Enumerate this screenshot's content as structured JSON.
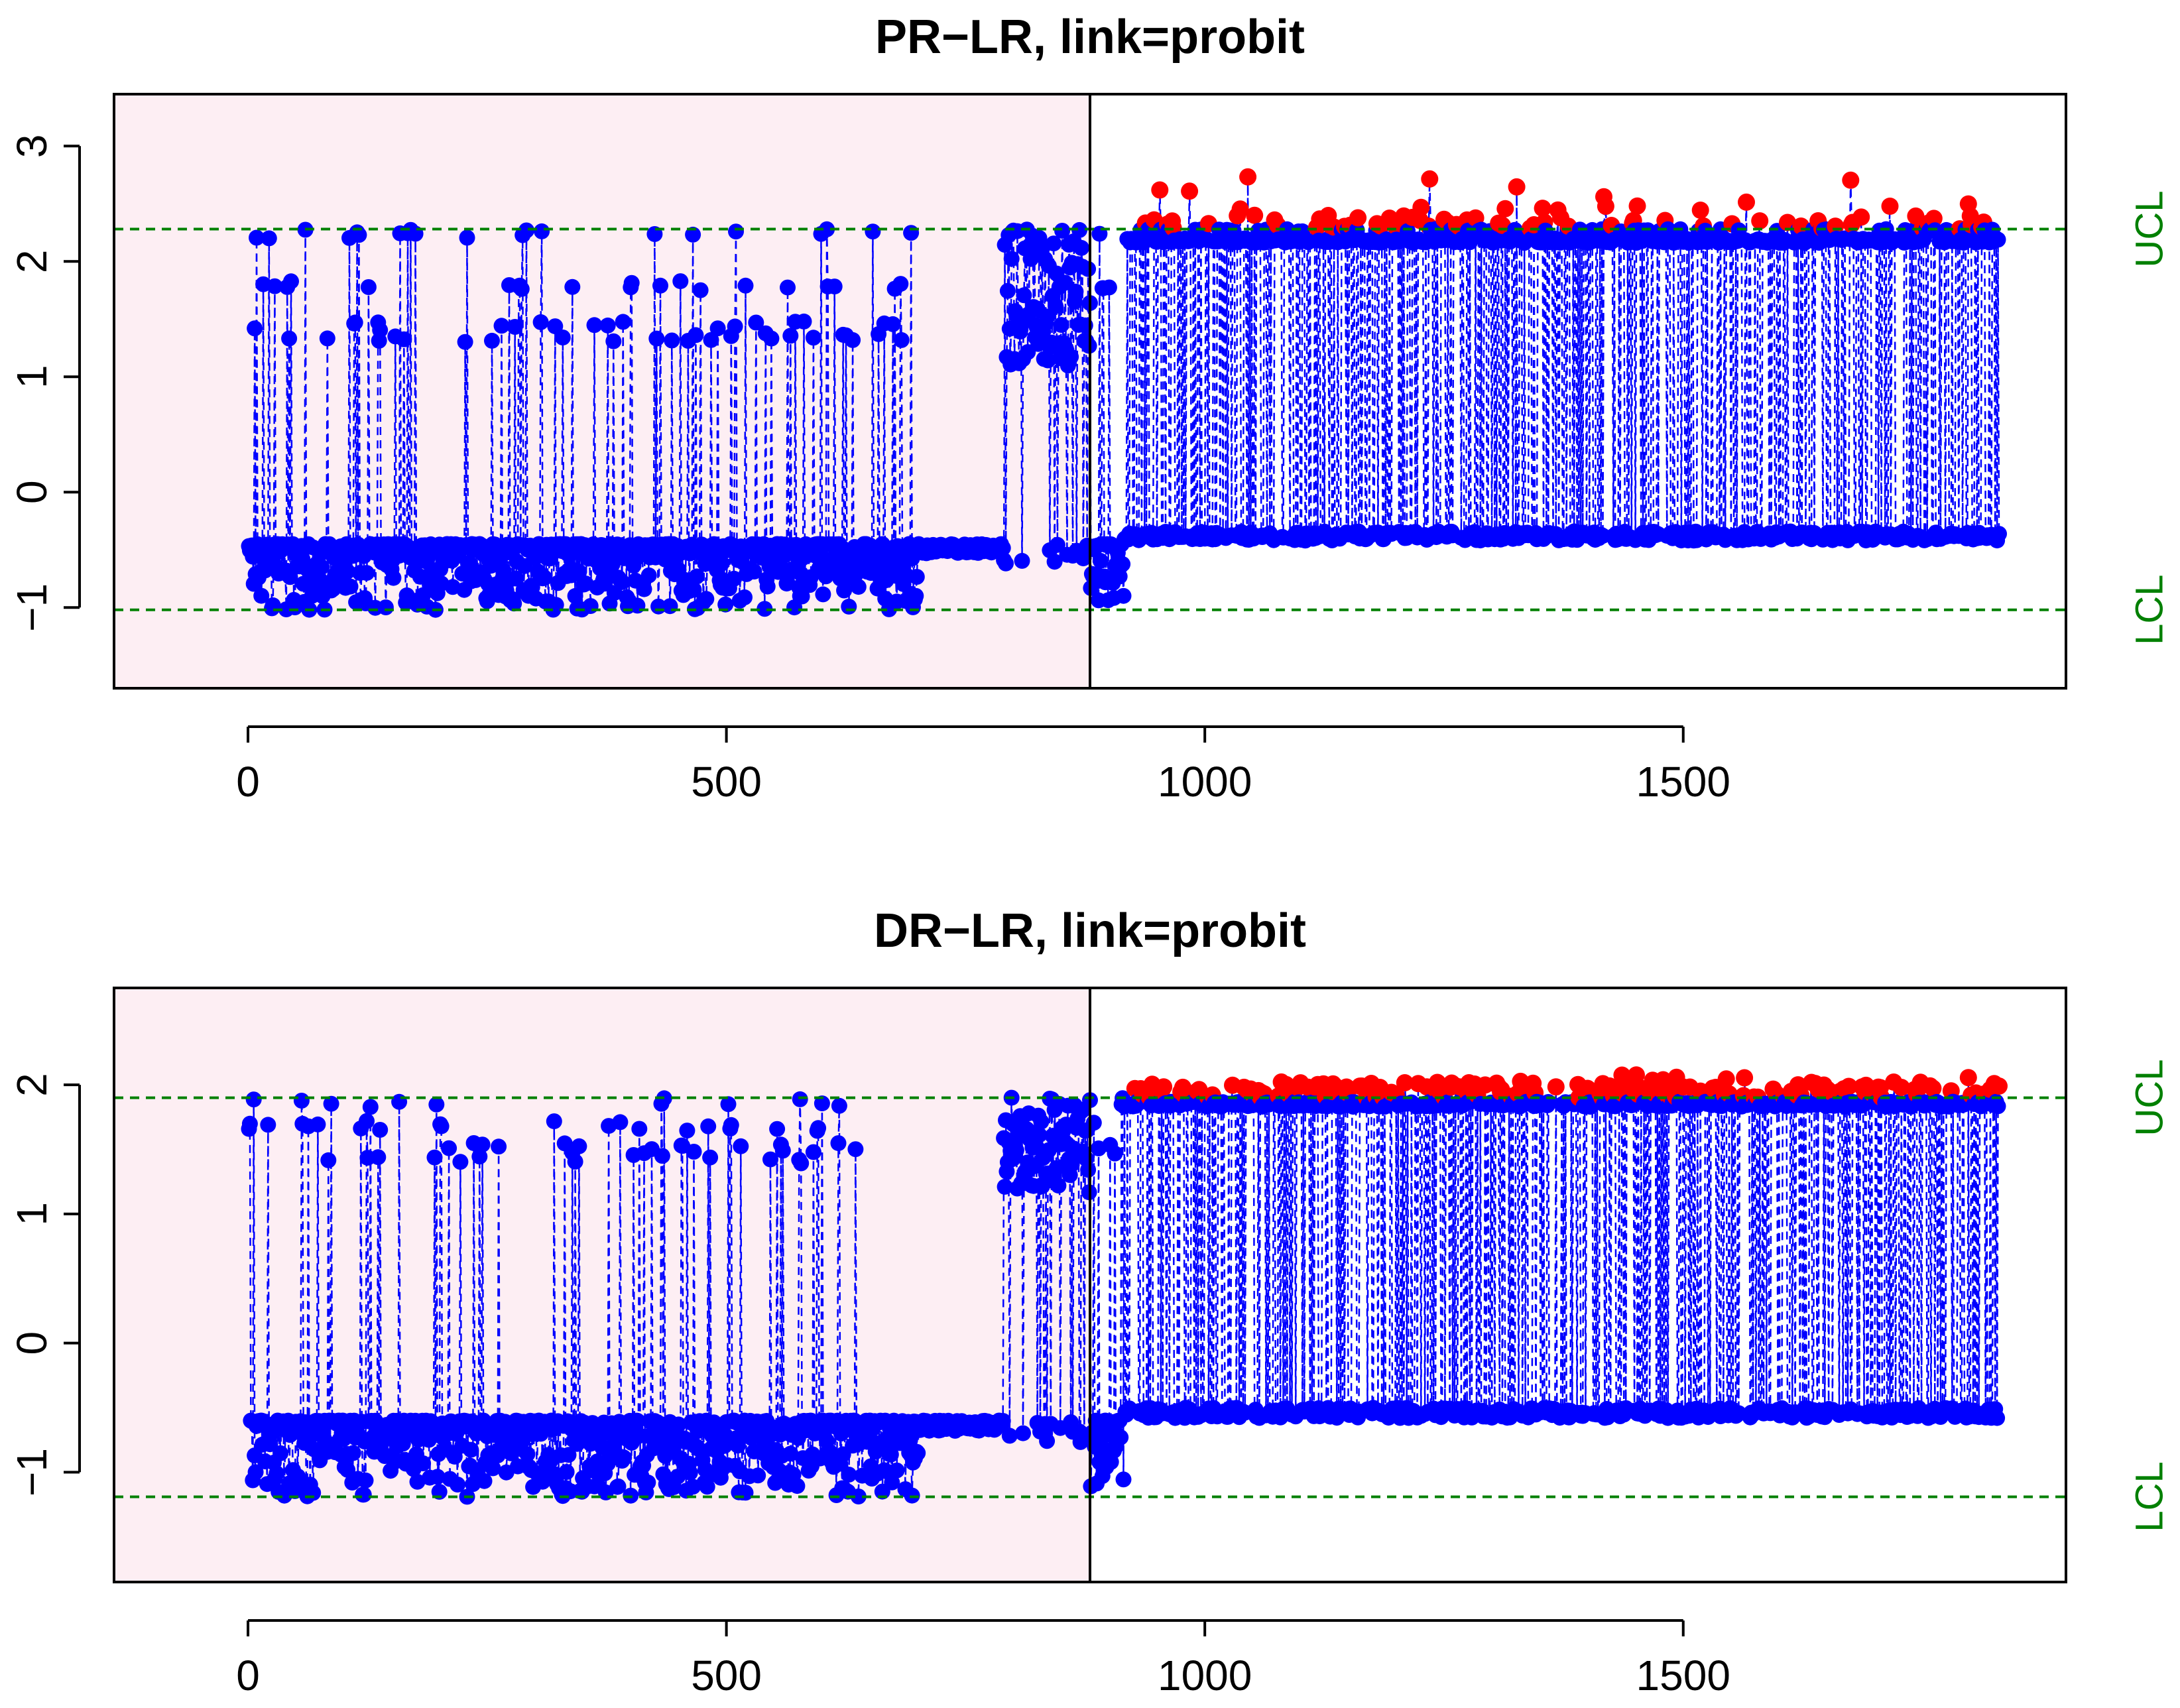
{
  "chart_data": [
    {
      "type": "scatter",
      "title": "PR−LR, link=probit",
      "xlabel": "",
      "ylabel": "",
      "xlim": [
        -140,
        1900
      ],
      "ylim": [
        -1.7,
        3.45
      ],
      "x_ticks": [
        0,
        500,
        1000,
        1500
      ],
      "x_tick_labels": [
        "0",
        "500",
        "1000",
        "1500"
      ],
      "y_ticks": [
        -1,
        0,
        1,
        2,
        3
      ],
      "y_tick_labels": [
        "−1",
        "0",
        "1",
        "2",
        "3"
      ],
      "phase_split_x": 915,
      "phase1_shading_color": "#fdeef3",
      "ucl": 2.28,
      "lcl": -1.02,
      "ucl_label": "UCL",
      "lcl_label": "LCL",
      "limit_color": "#008000",
      "in_control_color": "#0000ff",
      "out_of_control_color": "#ff0000",
      "n_points": 1830,
      "phase1_baseline": -0.45,
      "phase1_levels": [
        1.38,
        1.48,
        1.83,
        2.28
      ],
      "phase2_baseline": -0.42,
      "phase2_levels": [
        2.2,
        2.3
      ],
      "phase2_signal_max": 2.76,
      "grid": false
    },
    {
      "type": "scatter",
      "title": "DR−LR, link=probit",
      "xlabel": "",
      "ylabel": "",
      "xlim": [
        -140,
        1900
      ],
      "ylim": [
        -1.85,
        2.75
      ],
      "x_ticks": [
        0,
        500,
        1000,
        1500
      ],
      "x_tick_labels": [
        "0",
        "500",
        "1000",
        "1500"
      ],
      "y_ticks": [
        -1,
        0,
        1,
        2
      ],
      "y_tick_labels": [
        "−1",
        "0",
        "1",
        "2"
      ],
      "phase_split_x": 915,
      "phase1_shading_color": "#fdeef3",
      "ucl": 1.9,
      "lcl": -1.19,
      "ucl_label": "UCL",
      "lcl_label": "LCL",
      "limit_color": "#008000",
      "in_control_color": "#0000ff",
      "out_of_control_color": "#ff0000",
      "n_points": 1830,
      "phase1_baseline": -0.6,
      "phase1_levels": [
        1.47,
        1.55,
        1.72,
        1.9
      ],
      "phase2_baseline": -0.58,
      "phase2_levels": [
        1.87,
        1.95
      ],
      "phase2_signal_max": 2.08,
      "grid": false
    }
  ]
}
